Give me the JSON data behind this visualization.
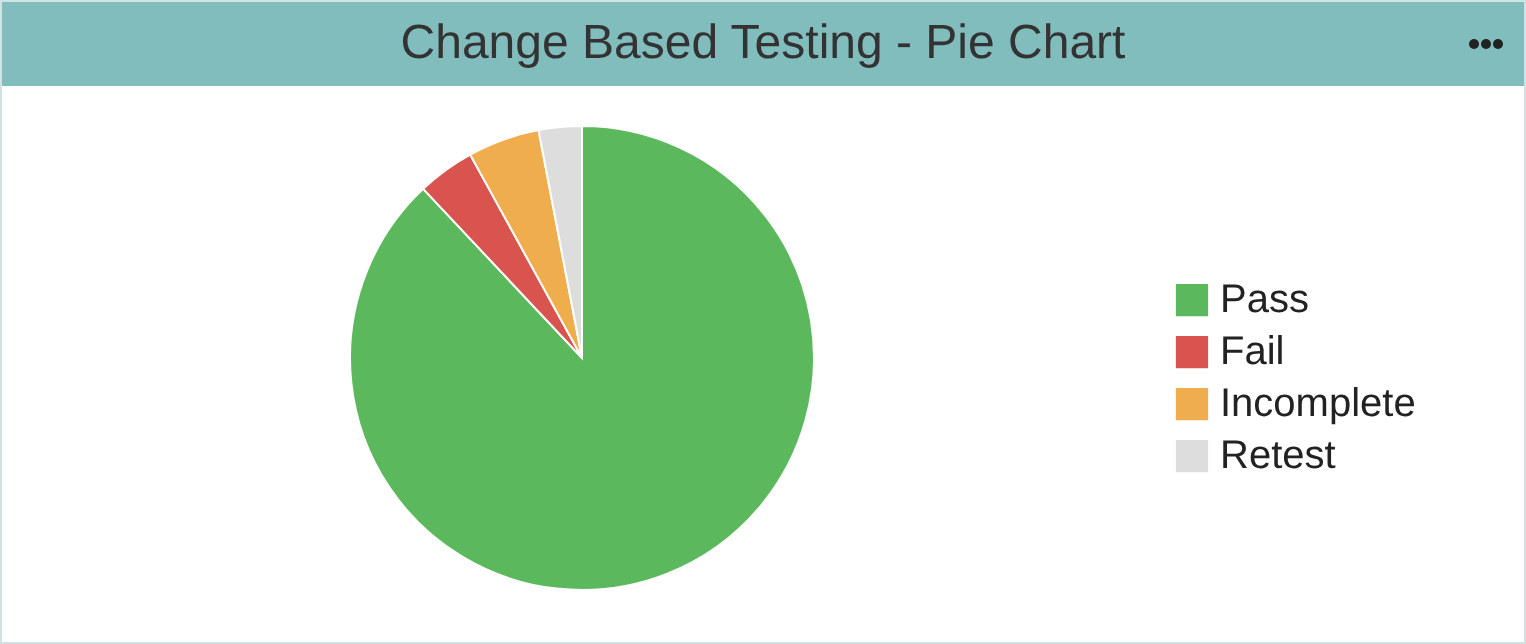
{
  "chart_data": {
    "type": "pie",
    "title": "Change Based Testing - Pie Chart",
    "categories": [
      "Pass",
      "Fail",
      "Incomplete",
      "Retest"
    ],
    "values": [
      88,
      4,
      5,
      3
    ],
    "colors": [
      "#5cb85c",
      "#d9534f",
      "#f0ad4e",
      "#dddddd"
    ],
    "legend": "right"
  }
}
